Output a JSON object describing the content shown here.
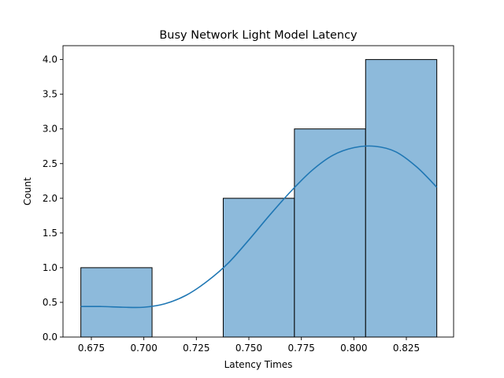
{
  "chart_data": {
    "type": "bar",
    "title": "Busy Network Light Model Latency",
    "xlabel": "Latency Times",
    "ylabel": "Count",
    "xlim": [
      0.6615,
      0.8475
    ],
    "ylim": [
      0,
      4.2
    ],
    "xticks": [
      "0.675",
      "0.700",
      "0.725",
      "0.750",
      "0.775",
      "0.800",
      "0.825"
    ],
    "xtick_values": [
      0.675,
      0.7,
      0.725,
      0.75,
      0.775,
      0.8,
      0.825
    ],
    "yticks": [
      "0.0",
      "0.5",
      "1.0",
      "1.5",
      "2.0",
      "2.5",
      "3.0",
      "3.5",
      "4.0"
    ],
    "ytick_values": [
      0.0,
      0.5,
      1.0,
      1.5,
      2.0,
      2.5,
      3.0,
      3.5,
      4.0
    ],
    "bins": [
      {
        "x0": 0.67,
        "x1": 0.7039,
        "count": 1
      },
      {
        "x0": 0.7039,
        "x1": 0.7378,
        "count": 0
      },
      {
        "x0": 0.7378,
        "x1": 0.7717,
        "count": 2
      },
      {
        "x0": 0.7717,
        "x1": 0.8056,
        "count": 3
      },
      {
        "x0": 0.8056,
        "x1": 0.8395,
        "count": 4
      }
    ],
    "kde": {
      "x": [
        0.67,
        0.68,
        0.69,
        0.7,
        0.71,
        0.72,
        0.73,
        0.74,
        0.75,
        0.76,
        0.77,
        0.78,
        0.79,
        0.8,
        0.81,
        0.82,
        0.83,
        0.8395
      ],
      "y": [
        0.44,
        0.44,
        0.43,
        0.43,
        0.48,
        0.6,
        0.8,
        1.06,
        1.4,
        1.76,
        2.1,
        2.4,
        2.62,
        2.73,
        2.75,
        2.67,
        2.45,
        2.16
      ]
    },
    "bar_color": "#8dbadb",
    "bar_edge": "#000000",
    "line_color": "#1f77b4",
    "grid": false,
    "legend": "none"
  }
}
